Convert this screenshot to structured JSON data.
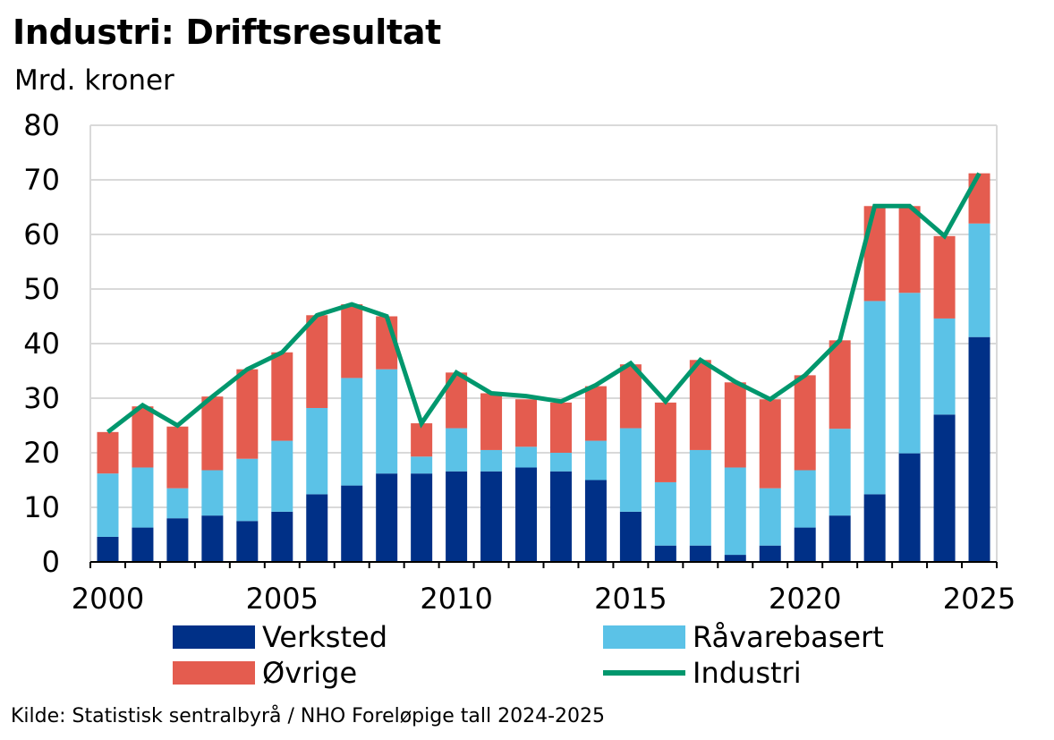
{
  "chart_data": {
    "type": "bar",
    "stacked": true,
    "title": "Industri: Driftsresultat",
    "ylabel": "Mrd. kroner",
    "xlabel": "",
    "ylim": [
      0,
      80
    ],
    "yticks": [
      "0",
      "10",
      "20",
      "30",
      "40",
      "50",
      "60",
      "70",
      "80"
    ],
    "xticks": [
      "2000",
      "2005",
      "2010",
      "2015",
      "2020",
      "2025"
    ],
    "grid": true,
    "categories": [
      2000,
      2001,
      2002,
      2003,
      2004,
      2005,
      2006,
      2007,
      2008,
      2009,
      2010,
      2011,
      2012,
      2013,
      2014,
      2015,
      2016,
      2017,
      2018,
      2019,
      2020,
      2021,
      2022,
      2023,
      2024,
      2025
    ],
    "series": [
      {
        "name": "Verksted",
        "kind": "bar",
        "color": "#003087",
        "values": [
          4.6,
          6.3,
          8,
          8.5,
          7.5,
          9.2,
          12.4,
          14,
          16.2,
          16.2,
          16.6,
          16.6,
          17.3,
          16.6,
          15,
          9.2,
          3,
          3,
          1.3,
          3,
          6.3,
          8.5,
          12.4,
          19.9,
          27,
          41.2
        ]
      },
      {
        "name": "Råvarebasert",
        "kind": "bar",
        "color": "#5bc2e7",
        "values": [
          11.6,
          11,
          5.5,
          8.3,
          11.4,
          13,
          15.8,
          19.7,
          19.1,
          3.1,
          7.9,
          3.9,
          3.8,
          3.4,
          7.2,
          15.3,
          11.6,
          17.5,
          16,
          10.5,
          10.5,
          15.9,
          35.4,
          29.4,
          17.6,
          20.8
        ]
      },
      {
        "name": "Øvrige",
        "kind": "bar",
        "color": "#e45c4f",
        "values": [
          7.6,
          11.2,
          11.3,
          13.5,
          16.4,
          16.2,
          17,
          13.5,
          9.7,
          6.1,
          10.2,
          10.4,
          8.7,
          9.2,
          10,
          11.7,
          14.6,
          16.5,
          15.6,
          16.3,
          17.4,
          16.2,
          17.4,
          15.9,
          15.1,
          9.2
        ]
      },
      {
        "name": "Industri",
        "kind": "line",
        "color": "#00976d",
        "values": [
          23.8,
          28.7,
          25,
          30.3,
          35.3,
          38.4,
          45.2,
          47.2,
          45,
          25.4,
          34.7,
          30.9,
          30.4,
          29.4,
          32.4,
          36.4,
          29.4,
          37,
          33,
          29.8,
          34.2,
          40.6,
          65.2,
          65.2,
          59.7,
          71.2
        ]
      }
    ]
  },
  "legend": {
    "items": [
      {
        "label": "Verksted",
        "color": "#003087",
        "kind": "bar"
      },
      {
        "label": "Råvarebasert",
        "color": "#5bc2e7",
        "kind": "bar"
      },
      {
        "label": "Øvrige",
        "color": "#e45c4f",
        "kind": "bar"
      },
      {
        "label": "Industri",
        "color": "#00976d",
        "kind": "line"
      }
    ]
  },
  "source": "Kilde: Statistisk sentralbyrå / NHO   Foreløpige tall 2024-2025"
}
